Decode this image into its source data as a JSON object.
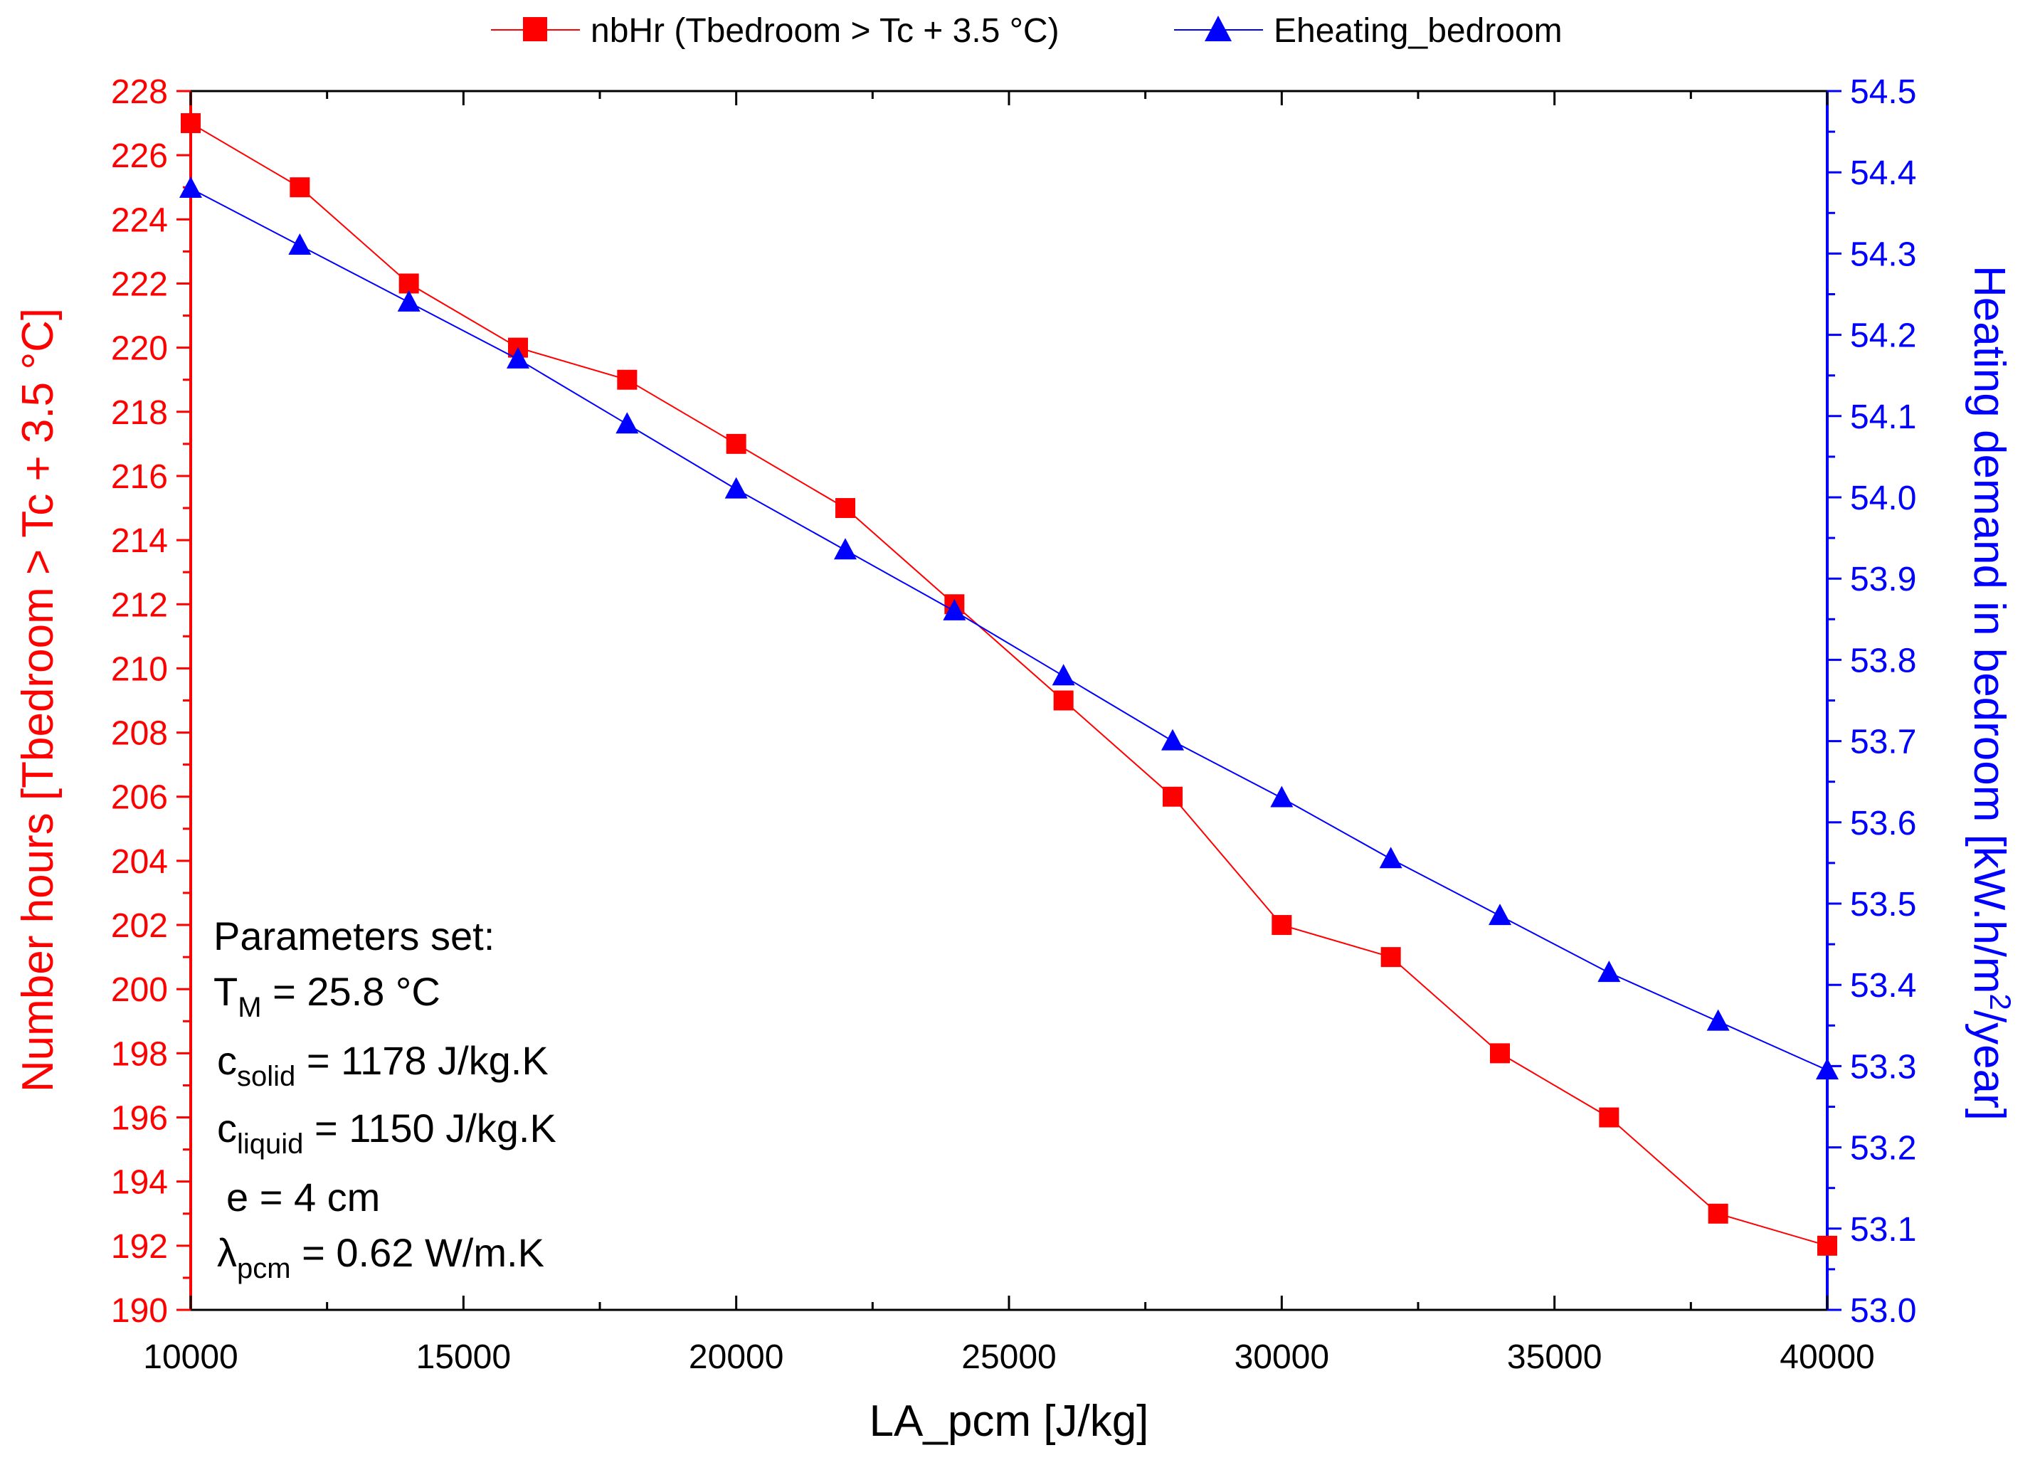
{
  "chart_data": {
    "type": "line",
    "x": [
      10000,
      12000,
      14000,
      16000,
      18000,
      20000,
      22000,
      24000,
      26000,
      28000,
      30000,
      32000,
      34000,
      36000,
      38000,
      40000
    ],
    "xlabel": "LA_pcm [J/kg]",
    "xlim": [
      10000,
      40000
    ],
    "xticks": [
      "10000",
      "15000",
      "20000",
      "25000",
      "30000",
      "35000",
      "40000"
    ],
    "ylabel_left": "Number hours [Tbedroom > Tc + 3.5 °C]",
    "ylim_left": [
      190,
      228
    ],
    "yticks_left": [
      "190",
      "192",
      "194",
      "196",
      "198",
      "200",
      "202",
      "204",
      "206",
      "208",
      "210",
      "212",
      "214",
      "216",
      "218",
      "220",
      "222",
      "224",
      "226",
      "228"
    ],
    "ylabel_right": "Heating demand in bedroom [kW.h/m²/year]",
    "ylim_right": [
      53.0,
      54.5
    ],
    "yticks_right": [
      "53.0",
      "53.1",
      "53.2",
      "53.3",
      "53.4",
      "53.5",
      "53.6",
      "53.7",
      "53.8",
      "53.9",
      "54.0",
      "54.1",
      "54.2",
      "54.3",
      "54.4",
      "54.5"
    ],
    "grid": false,
    "series": [
      {
        "name": "nbHr (Tbedroom > Tc + 3.5 °C)",
        "axis": "left",
        "marker": "square",
        "color": "#ff0000",
        "values": [
          227,
          225,
          222,
          220,
          219,
          217,
          215,
          212,
          209,
          206,
          202,
          201,
          198,
          196,
          193,
          192
        ]
      },
      {
        "name": "Eheating_bedroom",
        "axis": "right",
        "marker": "triangle",
        "color": "#0000ff",
        "values": [
          54.38,
          54.31,
          54.24,
          54.17,
          54.09,
          54.01,
          53.935,
          53.86,
          53.78,
          53.7,
          53.63,
          53.555,
          53.485,
          53.415,
          53.355,
          53.295
        ]
      }
    ],
    "annotation": {
      "heading": "Parameters set:",
      "lines": [
        {
          "base": "T",
          "sub": "M",
          "rest": " = 25.8 °C"
        },
        {
          "base": "c",
          "sub": "solid",
          "rest": " = 1178 J/kg.K"
        },
        {
          "base": "c",
          "sub": "liquid",
          "rest": " = 1150 J/kg.K"
        },
        {
          "base": "e = 4 cm",
          "sub": "",
          "rest": ""
        },
        {
          "base": "λ",
          "sub": "pcm",
          "rest": " = 0.62 W/m.K"
        }
      ]
    }
  }
}
